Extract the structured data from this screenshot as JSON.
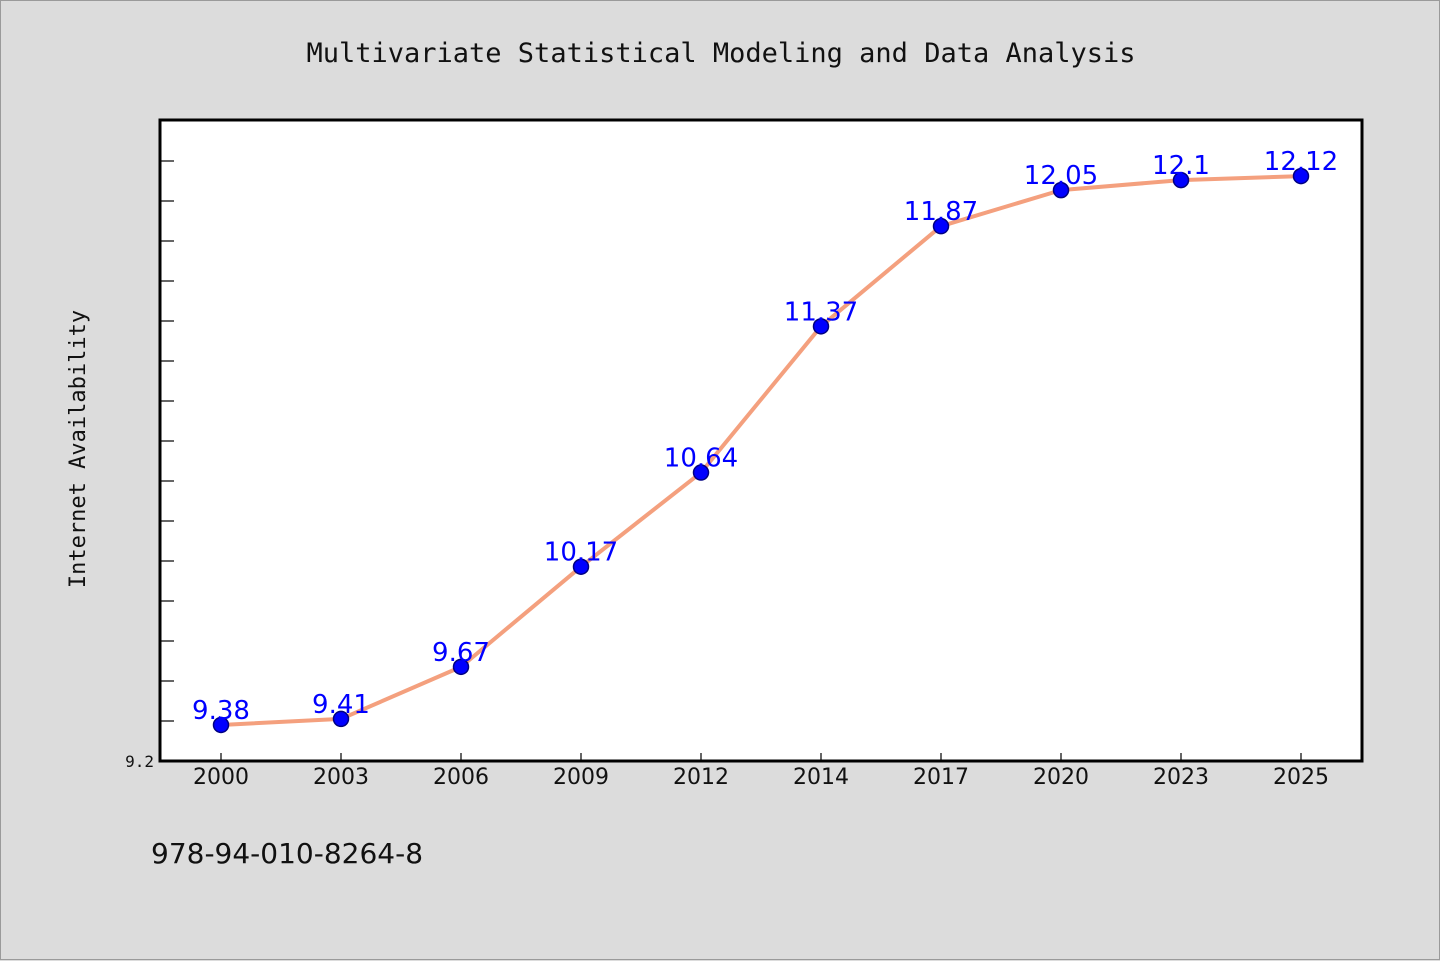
{
  "chart_data": {
    "type": "line",
    "title": "Multivariate Statistical Modeling and Data Analysis",
    "xlabel": "",
    "ylabel": "Internet Availability",
    "categories": [
      "2000",
      "2003",
      "2006",
      "2009",
      "2012",
      "2014",
      "2017",
      "2020",
      "2023",
      "2025"
    ],
    "series": [
      {
        "values": [
          9.38,
          9.41,
          9.67,
          10.17,
          10.64,
          11.37,
          11.87,
          12.05,
          12.1,
          12.12
        ],
        "labels": [
          "9.38",
          "9.41",
          "9.67",
          "10.17",
          "10.64",
          "11.37",
          "11.87",
          "12.05",
          "12.1",
          "12.12"
        ]
      }
    ],
    "ylim": [
      9.2,
      12.4
    ],
    "ytick_labels": [
      "9.2"
    ],
    "grid": false,
    "legend": "none",
    "colors": {
      "line": "#f4a07e",
      "marker": "#0000ff",
      "marker_edge": "#000080",
      "label": "#0000ff",
      "plot_bg": "#ffffff",
      "page_bg": "#dcdcdc"
    }
  },
  "footer": {
    "isbn": "978-94-010-8264-8"
  }
}
